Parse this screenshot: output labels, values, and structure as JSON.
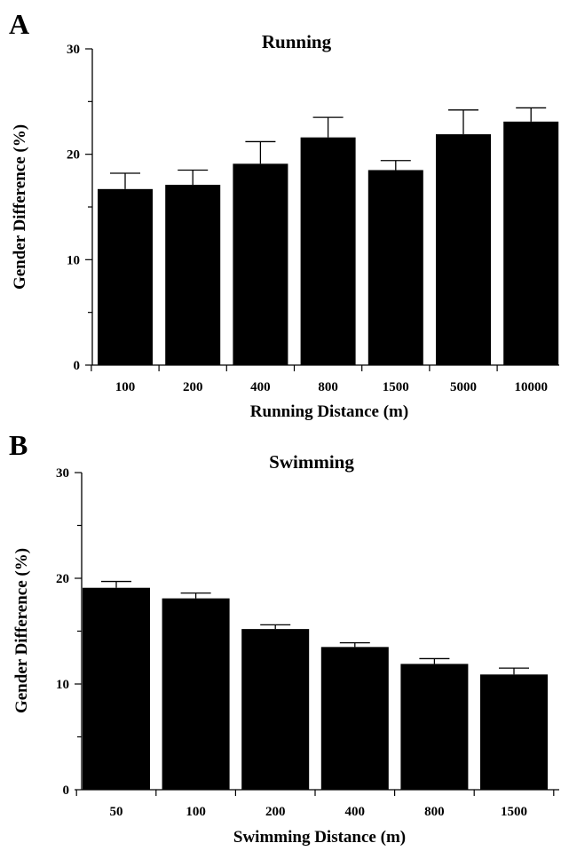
{
  "chart_data": [
    {
      "type": "bar",
      "panel_label": "A",
      "title": "Running",
      "xlabel": "Running Distance (m)",
      "ylabel": "Gender Difference (%)",
      "ylim": [
        0,
        30
      ],
      "yticks": [
        0,
        10,
        20,
        30
      ],
      "categories": [
        "100",
        "200",
        "400",
        "800",
        "1500",
        "5000",
        "10000"
      ],
      "values": [
        16.7,
        17.1,
        19.1,
        21.6,
        18.5,
        21.9,
        23.1
      ],
      "error": [
        1.5,
        1.4,
        2.1,
        1.9,
        0.9,
        2.3,
        1.3
      ],
      "grid": false,
      "bar_color": "#000000"
    },
    {
      "type": "bar",
      "panel_label": "B",
      "title": "Swimming",
      "xlabel": "Swimming Distance  (m)",
      "ylabel": "Gender Difference (%)",
      "ylim": [
        0,
        30
      ],
      "yticks": [
        0,
        10,
        20,
        30
      ],
      "categories": [
        "50",
        "100",
        "200",
        "400",
        "800",
        "1500"
      ],
      "values": [
        19.1,
        18.1,
        15.2,
        13.5,
        11.9,
        10.9
      ],
      "error": [
        0.6,
        0.5,
        0.4,
        0.4,
        0.5,
        0.6
      ],
      "grid": false,
      "bar_color": "#000000"
    }
  ]
}
